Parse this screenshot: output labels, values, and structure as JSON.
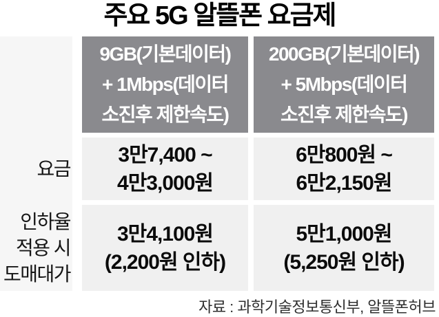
{
  "title": "주요 5G 알뜰폰 요금제",
  "display": {
    "title": "주요 5G 알뜰폰 요금제",
    "headers": [
      "9GB(기본데이터)\n+ 1Mbps(데이터\n소진후 제한속도)",
      "200GB(기본데이터)\n+ 5Mbps(데이터\n소진후 제한속도)"
    ],
    "rows": [
      {
        "label": "요금",
        "values": [
          "3만7,400 ~\n4만3,000원",
          "6만800원 ~\n6만2,150원"
        ]
      },
      {
        "label": "인하율\n적용 시\n도매대가",
        "values": [
          "3만4,100원\n(2,200원 인하)",
          "5만1,000원\n(5,250원 인하)"
        ]
      }
    ],
    "source": "자료 : 과학기술정보통신부, 알뜰폰허브"
  },
  "chart_data": {
    "type": "table",
    "title": "주요 5G 알뜰폰 요금제",
    "columns": [
      "",
      "9GB(기본데이터) + 1Mbps(데이터 소진후 제한속도)",
      "200GB(기본데이터) + 5Mbps(데이터 소진후 제한속도)"
    ],
    "rows": [
      [
        "요금",
        "3만7,400 ~ 4만3,000원",
        "6만800원 ~ 6만2,150원"
      ],
      [
        "인하율 적용 시 도매대가",
        "3만4,100원 (2,200원 인하)",
        "5만1,000원 (5,250원 인하)"
      ]
    ],
    "source": "자료 : 과학기술정보통신부, 알뜰폰허브"
  },
  "colors": {
    "header_bg": "#8a8a8e",
    "cell_bg": "#f0f0f0",
    "label_bg": "#f6f6f6",
    "header_text": "#ffffff",
    "text": "#0b0b0b",
    "source_text": "#2f2f2f"
  }
}
